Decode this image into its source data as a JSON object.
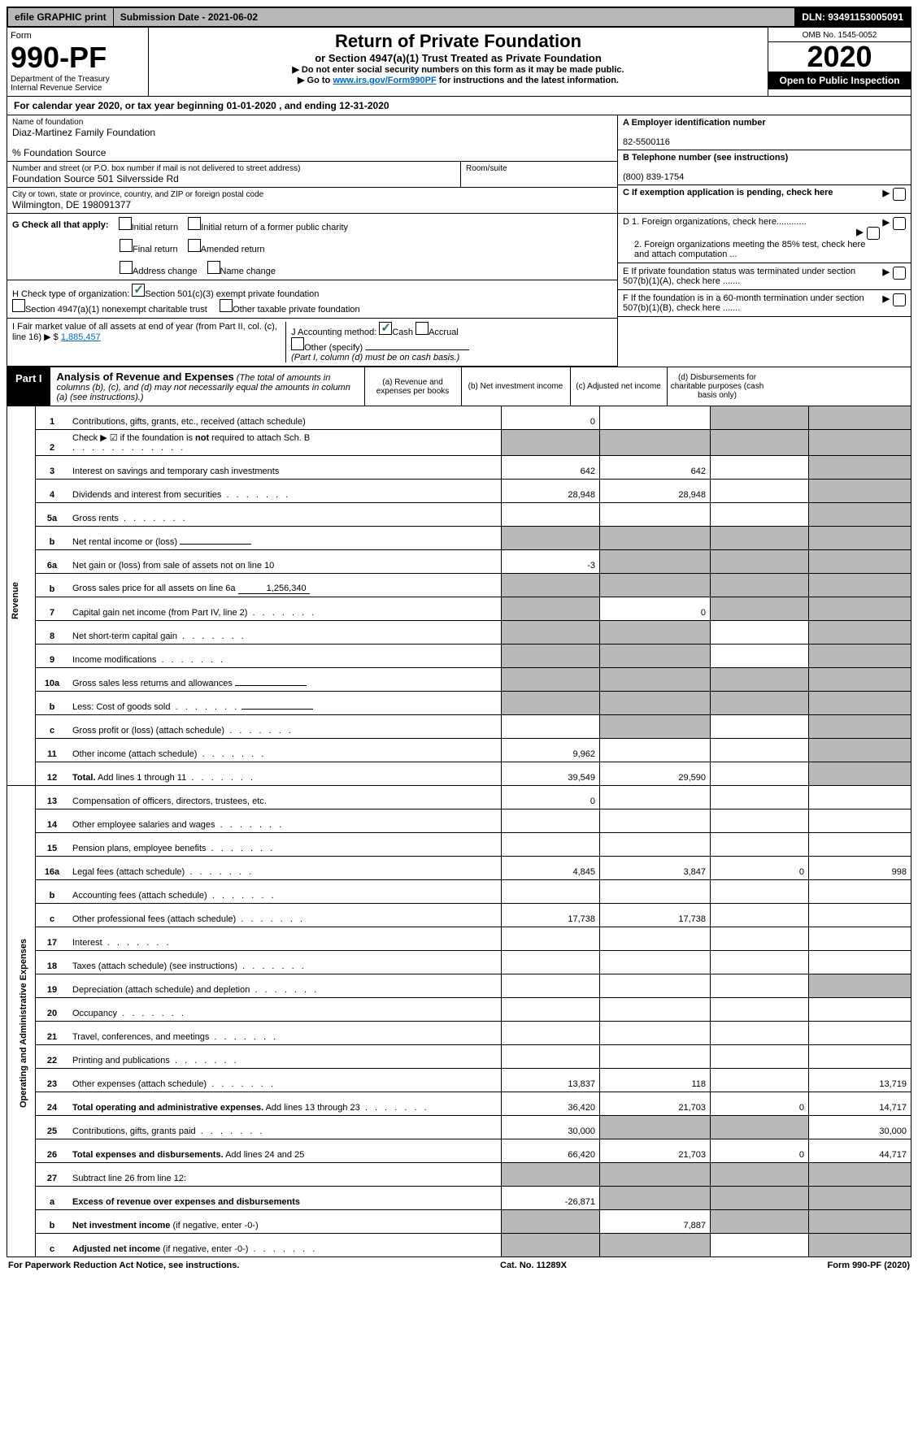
{
  "topbar": {
    "efile": "efile GRAPHIC print",
    "submission": "Submission Date - 2021-06-02",
    "dln": "DLN: 93491153005091"
  },
  "header": {
    "form_label": "Form",
    "form_num": "990-PF",
    "dept1": "Department of the Treasury",
    "dept2": "Internal Revenue Service",
    "title": "Return of Private Foundation",
    "subtitle": "or Section 4947(a)(1) Trust Treated as Private Foundation",
    "instr1": "▶ Do not enter social security numbers on this form as it may be made public.",
    "instr2_pre": "▶ Go to ",
    "instr2_link": "www.irs.gov/Form990PF",
    "instr2_post": " for instructions and the latest information.",
    "omb": "OMB No. 1545-0052",
    "year": "2020",
    "open_pub": "Open to Public Inspection"
  },
  "cal_year": "For calendar year 2020, or tax year beginning 01-01-2020                              , and ending 12-31-2020",
  "entity": {
    "name_label": "Name of foundation",
    "name": "Diaz-Martinez Family Foundation",
    "care_of": "% Foundation Source",
    "addr_label": "Number and street (or P.O. box number if mail is not delivered to street address)",
    "addr": "Foundation Source 501 Silversside Rd",
    "room_label": "Room/suite",
    "city_label": "City or town, state or province, country, and ZIP or foreign postal code",
    "city": "Wilmington, DE  198091377"
  },
  "right": {
    "a_label": "A Employer identification number",
    "a_val": "82-5500116",
    "b_label": "B Telephone number (see instructions)",
    "b_val": "(800) 839-1754",
    "c_label": "C If exemption application is pending, check here",
    "d1": "D 1. Foreign organizations, check here............",
    "d2": "2. Foreign organizations meeting the 85% test, check here and attach computation ...",
    "e": "E If private foundation status was terminated under section 507(b)(1)(A), check here .......",
    "f": "F If the foundation is in a 60-month termination under section 507(b)(1)(B), check here ......."
  },
  "checks": {
    "g_label": "G Check all that apply:",
    "initial": "Initial return",
    "initial_former": "Initial return of a former public charity",
    "final": "Final return",
    "amended": "Amended return",
    "addr_change": "Address change",
    "name_change": "Name change",
    "h_label": "H Check type of organization:",
    "h_501c3": "Section 501(c)(3) exempt private foundation",
    "h_4947": "Section 4947(a)(1) nonexempt charitable trust",
    "h_other_tax": "Other taxable private foundation",
    "i_label": "I Fair market value of all assets at end of year (from Part II, col. (c), line 16) ▶ $",
    "i_val": "1,885,457",
    "j_label": "J Accounting method:",
    "j_cash": "Cash",
    "j_accrual": "Accrual",
    "j_other": "Other (specify)",
    "j_note": "(Part I, column (d) must be on cash basis.)"
  },
  "part1": {
    "label": "Part I",
    "title": "Analysis of Revenue and Expenses",
    "sub": " (The total of amounts in columns (b), (c), and (d) may not necessarily equal the amounts in column (a) (see instructions).)",
    "col_a": "(a) Revenue and expenses per books",
    "col_b": "(b) Net investment income",
    "col_c": "(c) Adjusted net income",
    "col_d": "(d) Disbursements for charitable purposes (cash basis only)",
    "side_rev": "Revenue",
    "side_exp": "Operating and Administrative Expenses"
  },
  "rows": [
    {
      "n": "1",
      "desc": "Contributions, gifts, grants, etc., received (attach schedule)",
      "a": "0",
      "b": "",
      "c": "s",
      "d": "s"
    },
    {
      "n": "2",
      "desc": "Check ▶ ☑ if the foundation is <b>not</b> required to attach Sch. B",
      "a": "s",
      "b": "s",
      "c": "s",
      "d": "s",
      "dotafter": true
    },
    {
      "n": "3",
      "desc": "Interest on savings and temporary cash investments",
      "a": "642",
      "b": "642",
      "c": "",
      "d": "s"
    },
    {
      "n": "4",
      "desc": "Dividends and interest from securities",
      "a": "28,948",
      "b": "28,948",
      "c": "",
      "d": "s",
      "dot": true
    },
    {
      "n": "5a",
      "desc": "Gross rents",
      "a": "",
      "b": "",
      "c": "",
      "d": "s",
      "dot": true
    },
    {
      "n": "b",
      "desc": "Net rental income or (loss)",
      "a": "s",
      "b": "s",
      "c": "s",
      "d": "s",
      "inline": true
    },
    {
      "n": "6a",
      "desc": "Net gain or (loss) from sale of assets not on line 10",
      "a": "-3",
      "b": "s",
      "c": "s",
      "d": "s"
    },
    {
      "n": "b",
      "desc": "Gross sales price for all assets on line 6a",
      "a": "s",
      "b": "s",
      "c": "s",
      "d": "s",
      "inline": true,
      "inlineval": "1,256,340"
    },
    {
      "n": "7",
      "desc": "Capital gain net income (from Part IV, line 2)",
      "a": "s",
      "b": "0",
      "c": "s",
      "d": "s",
      "dot": true
    },
    {
      "n": "8",
      "desc": "Net short-term capital gain",
      "a": "s",
      "b": "s",
      "c": "",
      "d": "s",
      "dot": true
    },
    {
      "n": "9",
      "desc": "Income modifications",
      "a": "s",
      "b": "s",
      "c": "",
      "d": "s",
      "dot": true
    },
    {
      "n": "10a",
      "desc": "Gross sales less returns and allowances",
      "a": "s",
      "b": "s",
      "c": "s",
      "d": "s",
      "inline": true
    },
    {
      "n": "b",
      "desc": "Less: Cost of goods sold",
      "a": "s",
      "b": "s",
      "c": "s",
      "d": "s",
      "inline": true,
      "dot": true
    },
    {
      "n": "c",
      "desc": "Gross profit or (loss) (attach schedule)",
      "a": "",
      "b": "s",
      "c": "",
      "d": "s",
      "dot": true
    },
    {
      "n": "11",
      "desc": "Other income (attach schedule)",
      "a": "9,962",
      "b": "",
      "c": "",
      "d": "s",
      "dot": true
    },
    {
      "n": "12",
      "desc": "<b>Total.</b> Add lines 1 through 11",
      "a": "39,549",
      "b": "29,590",
      "c": "",
      "d": "s",
      "dot": true
    },
    {
      "n": "13",
      "desc": "Compensation of officers, directors, trustees, etc.",
      "a": "0",
      "b": "",
      "c": "",
      "d": ""
    },
    {
      "n": "14",
      "desc": "Other employee salaries and wages",
      "a": "",
      "b": "",
      "c": "",
      "d": "",
      "dot": true
    },
    {
      "n": "15",
      "desc": "Pension plans, employee benefits",
      "a": "",
      "b": "",
      "c": "",
      "d": "",
      "dot": true
    },
    {
      "n": "16a",
      "desc": "Legal fees (attach schedule)",
      "a": "4,845",
      "b": "3,847",
      "c": "0",
      "d": "998",
      "dot": true
    },
    {
      "n": "b",
      "desc": "Accounting fees (attach schedule)",
      "a": "",
      "b": "",
      "c": "",
      "d": "",
      "dot": true
    },
    {
      "n": "c",
      "desc": "Other professional fees (attach schedule)",
      "a": "17,738",
      "b": "17,738",
      "c": "",
      "d": "",
      "dot": true
    },
    {
      "n": "17",
      "desc": "Interest",
      "a": "",
      "b": "",
      "c": "",
      "d": "",
      "dot": true
    },
    {
      "n": "18",
      "desc": "Taxes (attach schedule) (see instructions)",
      "a": "",
      "b": "",
      "c": "",
      "d": "",
      "dot": true
    },
    {
      "n": "19",
      "desc": "Depreciation (attach schedule) and depletion",
      "a": "",
      "b": "",
      "c": "",
      "d": "s",
      "dot": true
    },
    {
      "n": "20",
      "desc": "Occupancy",
      "a": "",
      "b": "",
      "c": "",
      "d": "",
      "dot": true
    },
    {
      "n": "21",
      "desc": "Travel, conferences, and meetings",
      "a": "",
      "b": "",
      "c": "",
      "d": "",
      "dot": true
    },
    {
      "n": "22",
      "desc": "Printing and publications",
      "a": "",
      "b": "",
      "c": "",
      "d": "",
      "dot": true
    },
    {
      "n": "23",
      "desc": "Other expenses (attach schedule)",
      "a": "13,837",
      "b": "118",
      "c": "",
      "d": "13,719",
      "dot": true
    },
    {
      "n": "24",
      "desc": "<b>Total operating and administrative expenses.</b> Add lines 13 through 23",
      "a": "36,420",
      "b": "21,703",
      "c": "0",
      "d": "14,717",
      "dot": true
    },
    {
      "n": "25",
      "desc": "Contributions, gifts, grants paid",
      "a": "30,000",
      "b": "s",
      "c": "s",
      "d": "30,000",
      "dot": true
    },
    {
      "n": "26",
      "desc": "<b>Total expenses and disbursements.</b> Add lines 24 and 25",
      "a": "66,420",
      "b": "21,703",
      "c": "0",
      "d": "44,717"
    },
    {
      "n": "27",
      "desc": "Subtract line 26 from line 12:",
      "a": "s",
      "b": "s",
      "c": "s",
      "d": "s"
    },
    {
      "n": "a",
      "desc": "<b>Excess of revenue over expenses and disbursements</b>",
      "a": "-26,871",
      "b": "s",
      "c": "s",
      "d": "s"
    },
    {
      "n": "b",
      "desc": "<b>Net investment income</b> (if negative, enter -0-)",
      "a": "s",
      "b": "7,887",
      "c": "s",
      "d": "s"
    },
    {
      "n": "c",
      "desc": "<b>Adjusted net income</b> (if negative, enter -0-)",
      "a": "s",
      "b": "s",
      "c": "",
      "d": "s",
      "dot": true
    }
  ],
  "footer": {
    "left": "For Paperwork Reduction Act Notice, see instructions.",
    "mid": "Cat. No. 11289X",
    "right": "Form 990-PF (2020)"
  }
}
